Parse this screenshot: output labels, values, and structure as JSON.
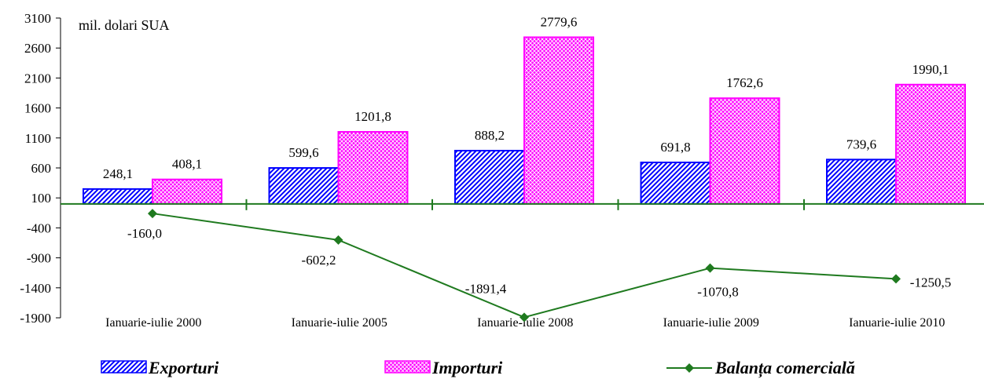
{
  "chart_data": {
    "type": "bar",
    "unit_label": "mil. dolari SUA",
    "categories": [
      "Ianuarie-iulie 2000",
      "Ianuarie-iulie 2005",
      "Ianuarie-iulie 2008",
      "Ianuarie-iulie 2009",
      "Ianuarie-iulie 2010"
    ],
    "series": [
      {
        "name": "Exporturi",
        "type": "bar",
        "color": "#0000ff",
        "values": [
          248.1,
          599.6,
          888.2,
          691.8,
          739.6
        ],
        "labels": [
          "248,1",
          "599,6",
          "888,2",
          "691,8",
          "739,6"
        ]
      },
      {
        "name": "Importuri",
        "type": "bar",
        "color": "#ff00ff",
        "values": [
          408.1,
          1201.8,
          2779.6,
          1762.6,
          1990.1
        ],
        "labels": [
          "408,1",
          "1201,8",
          "2779,6",
          "1762,6",
          "1990,1"
        ]
      },
      {
        "name": "Balanța comercială",
        "type": "line",
        "color": "#1f7a1f",
        "values": [
          -160.0,
          -602.2,
          -1891.4,
          -1070.8,
          -1250.5
        ],
        "labels": [
          "-160,0",
          "-602,2",
          "-1891,4",
          "-1070,8",
          "-1250,5"
        ]
      }
    ],
    "yticks": [
      3100,
      2600,
      2100,
      1600,
      1100,
      600,
      100,
      -400,
      -900,
      -1400,
      -1900
    ],
    "ylim": [
      -1900,
      3100
    ],
    "grid": false,
    "legend_position": "bottom"
  }
}
